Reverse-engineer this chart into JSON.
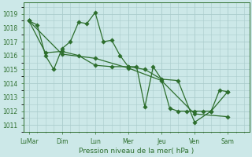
{
  "background_color": "#cce8e8",
  "grid_color": "#aacccc",
  "line_color": "#2d6e2d",
  "marker_color": "#2d6e2d",
  "xlabel": "Pression niveau de la mer( hPa )",
  "ylim": [
    1010.5,
    1019.8
  ],
  "yticks": [
    1011,
    1012,
    1013,
    1014,
    1015,
    1016,
    1017,
    1018,
    1019
  ],
  "xlim": [
    -0.3,
    13.3
  ],
  "x_major_ticks": [
    0,
    2,
    4,
    6,
    8,
    10,
    12
  ],
  "x_major_labels": [
    "LuMar",
    "Dim",
    "Lun",
    "Mer",
    "Jeu",
    "Ven",
    "Sam"
  ],
  "s1_x": [
    0,
    0.5,
    1,
    1.5,
    2,
    2.5,
    3,
    3.5,
    4,
    4.5,
    5,
    5.5,
    6,
    6.5,
    7,
    7.5,
    8,
    8.5,
    9,
    9.5,
    10,
    10.5,
    11,
    11.5,
    12
  ],
  "s1_y": [
    1018.5,
    1018.2,
    1016.0,
    1015.0,
    1016.5,
    1017.0,
    1018.4,
    1018.3,
    1019.1,
    1017.0,
    1017.1,
    1016.0,
    1015.2,
    1015.2,
    1012.3,
    1015.2,
    1014.3,
    1012.2,
    1012.0,
    1012.0,
    1012.0,
    1012.0,
    1012.0,
    1013.5,
    1013.4
  ],
  "s2_x": [
    0,
    1,
    2,
    3,
    4,
    5,
    6,
    7,
    8,
    9,
    10,
    11,
    12
  ],
  "s2_y": [
    1018.5,
    1016.2,
    1016.3,
    1016.0,
    1015.3,
    1015.2,
    1015.2,
    1015.0,
    1014.3,
    1014.2,
    1011.2,
    1012.0,
    1013.4
  ],
  "s3_x": [
    0,
    2,
    4,
    6,
    8,
    10,
    12
  ],
  "s3_y": [
    1018.5,
    1016.1,
    1015.8,
    1015.1,
    1014.2,
    1011.8,
    1011.6
  ]
}
